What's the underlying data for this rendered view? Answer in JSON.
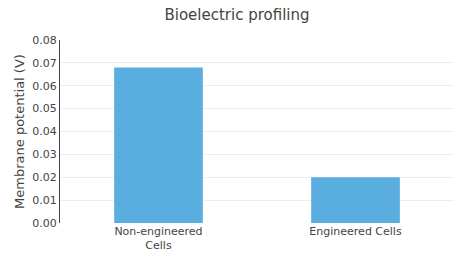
{
  "chart_data": {
    "type": "bar",
    "title": "Bioelectric profiling",
    "categories": [
      "Non-engineered\nCells",
      "Engineered Cells"
    ],
    "values": [
      0.068,
      0.02
    ],
    "color": "#5aaddf",
    "ylabel": "Membrane potential (V)",
    "ylim": [
      0,
      0.08
    ],
    "yticks": [
      {
        "value": 0,
        "label": "0.00"
      },
      0.01,
      0.02,
      0.03,
      0.04,
      0.05,
      0.06,
      0.07,
      0.08
    ],
    "grid": true
  }
}
